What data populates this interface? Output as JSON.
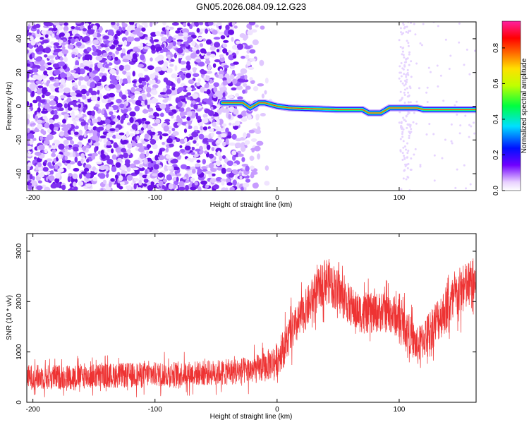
{
  "title": "GN05.2026.084.09.12.G23",
  "chart_data": [
    {
      "type": "heatmap",
      "xlabel": "Height of straight line (km)",
      "ylabel": "Frequency (Hz)",
      "xlim": [
        -205,
        163
      ],
      "ylim": [
        -50,
        50
      ],
      "x_ticks": [
        -200,
        -100,
        0,
        100
      ],
      "x_tick_labels": [
        "-200",
        "-100",
        "0",
        "100"
      ],
      "y_ticks": [
        -40,
        -20,
        0,
        20,
        40
      ],
      "y_tick_labels": [
        "-40",
        "-20",
        "0",
        "20",
        "40"
      ],
      "colorbar": {
        "label": "Normalized spectral amplitude",
        "range": [
          0,
          0.95
        ],
        "ticks": [
          0,
          0.2,
          0.4,
          0.6,
          0.8
        ],
        "tick_labels": [
          "0.0",
          "0.2",
          "0.4",
          "0.6",
          "0.8"
        ]
      },
      "ridge": {
        "description_points_x": [
          -45,
          -28,
          -22,
          -15,
          -10,
          0,
          10,
          50,
          70,
          75,
          85,
          92,
          100,
          115,
          120,
          163
        ],
        "description_points_y": [
          2,
          2,
          -1,
          2,
          2,
          0,
          -1,
          -2,
          -2,
          -4,
          -4,
          -1,
          -1,
          -1,
          -2,
          -2
        ]
      },
      "noise_region_x": [
        -205,
        -20
      ],
      "grid": false
    },
    {
      "type": "line",
      "xlabel": "Height of straight line (km)",
      "ylabel": "SNR (10 * v/v)",
      "xlim": [
        -205,
        163
      ],
      "ylim": [
        0,
        3350
      ],
      "x_ticks": [
        -200,
        -100,
        0,
        100
      ],
      "x_tick_labels": [
        "-200",
        "-100",
        "0",
        "100"
      ],
      "y_ticks": [
        0,
        1000,
        2000,
        3000
      ],
      "y_tick_labels": [
        "0",
        "1000",
        "2000",
        "3000"
      ],
      "series": [
        {
          "color": "#ee3333",
          "x": [
            -205,
            -180,
            -150,
            -120,
            -90,
            -60,
            -40,
            -20,
            -10,
            0,
            10,
            20,
            30,
            40,
            45,
            55,
            65,
            75,
            85,
            95,
            105,
            110,
            115,
            120,
            130,
            140,
            150,
            163
          ],
          "y": [
            500,
            500,
            520,
            540,
            560,
            580,
            600,
            640,
            700,
            850,
            1300,
            1700,
            2100,
            2450,
            2350,
            2050,
            1800,
            1750,
            1800,
            1750,
            1500,
            1300,
            1100,
            1250,
            1600,
            1900,
            2200,
            2400
          ],
          "noise_amplitude": [
            250,
            250,
            250,
            250,
            250,
            250,
            260,
            280,
            300,
            350,
            400,
            400,
            420,
            450,
            450,
            420,
            400,
            400,
            400,
            400,
            400,
            380,
            380,
            400,
            450,
            480,
            500,
            520
          ]
        }
      ],
      "grid": false
    }
  ]
}
